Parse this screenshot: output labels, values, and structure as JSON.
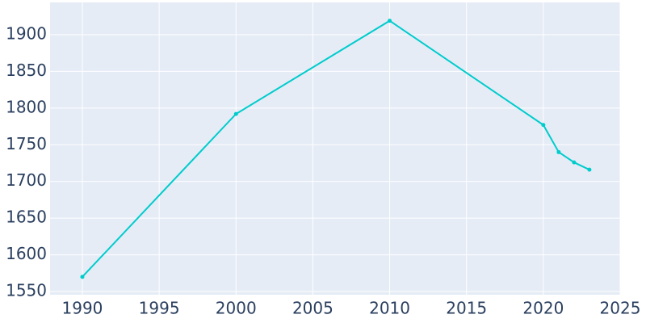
{
  "chart_data": {
    "type": "line",
    "x": [
      1990,
      2000,
      2010,
      2020,
      2021,
      2022,
      2023
    ],
    "series": [
      {
        "color": "#00cccc",
        "values": [
          1570,
          1792,
          1919,
          1777,
          1740,
          1726,
          1716
        ]
      }
    ],
    "xlim": [
      1987.9,
      2025
    ],
    "ylim": [
      1545.6,
      1944
    ],
    "xticks": [
      1990,
      1995,
      2000,
      2005,
      2010,
      2015,
      2020,
      2025
    ],
    "yticks": [
      1550,
      1600,
      1650,
      1700,
      1750,
      1800,
      1850,
      1900
    ],
    "grid": true
  }
}
